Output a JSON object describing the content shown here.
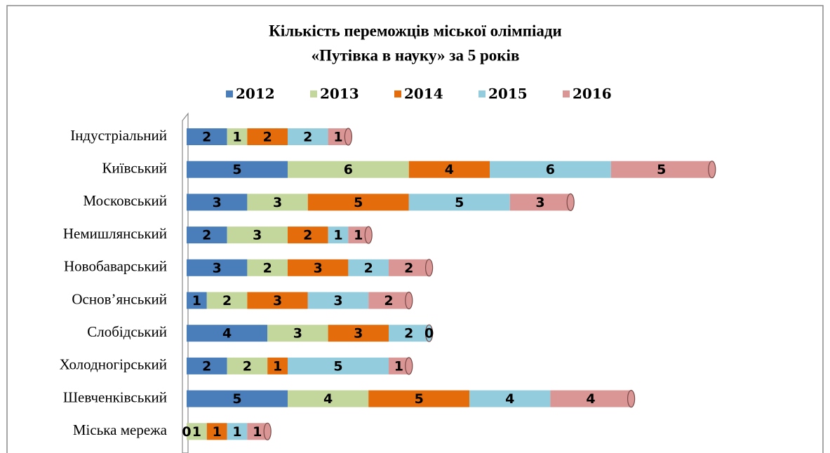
{
  "chart_data": {
    "type": "stacked_bar_horizontal",
    "title": [
      "Кількість  переможців міської олімпіади",
      "«Путівка в науку» за 5 років"
    ],
    "categories": [
      "Індустріальний",
      "Київський",
      "Московський",
      "Немишлянський",
      "Новобаварський",
      "Основ’янський",
      "Слобідський",
      "Холодногірський",
      "Шевченківський",
      "Міська мережа"
    ],
    "series": [
      {
        "name": "2012",
        "color": "#4a7ebb",
        "values": [
          2,
          5,
          3,
          2,
          3,
          1,
          4,
          2,
          5,
          0
        ]
      },
      {
        "name": "2013",
        "color": "#c3d69b",
        "values": [
          1,
          6,
          3,
          3,
          2,
          2,
          3,
          2,
          4,
          1
        ]
      },
      {
        "name": "2014",
        "color": "#e46c0a",
        "values": [
          2,
          4,
          5,
          2,
          3,
          3,
          3,
          1,
          5,
          1
        ]
      },
      {
        "name": "2015",
        "color": "#93cddd",
        "values": [
          2,
          6,
          5,
          1,
          2,
          3,
          2,
          5,
          4,
          1
        ]
      },
      {
        "name": "2016",
        "color": "#d99694",
        "values": [
          1,
          5,
          3,
          1,
          2,
          2,
          0,
          1,
          4,
          1
        ]
      }
    ],
    "legend": "top"
  }
}
